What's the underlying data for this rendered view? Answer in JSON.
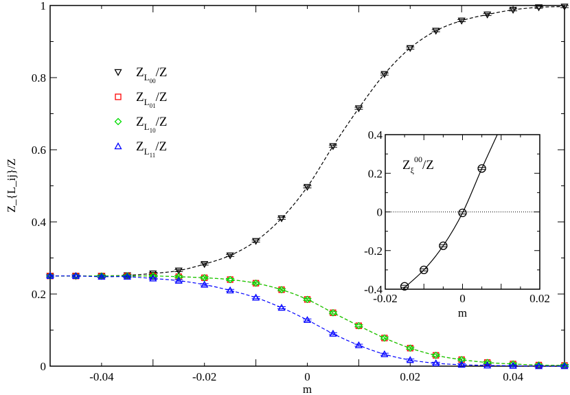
{
  "chart_data": [
    {
      "type": "line",
      "xlabel": "m",
      "ylabel": "Z_{L_ij}/Z",
      "xlim": [
        -0.05,
        0.05
      ],
      "ylim": [
        0,
        1
      ],
      "x_ticks": [
        "-0.04",
        "-0.02",
        "0",
        "0.02",
        "0.04"
      ],
      "y_ticks": [
        "0",
        "0.2",
        "0.4",
        "0.6",
        "0.8",
        "1"
      ],
      "grid": false,
      "legend_placement": "upper-left",
      "x": [
        -0.05,
        -0.045,
        -0.04,
        -0.035,
        -0.03,
        -0.025,
        -0.02,
        -0.015,
        -0.01,
        -0.005,
        0,
        0.005,
        0.01,
        0.015,
        0.02,
        0.025,
        0.03,
        0.035,
        0.04,
        0.045,
        0.05
      ],
      "series": [
        {
          "name": "Z_{L_00}/Z",
          "label_main": "Z",
          "label_sub": "L",
          "label_subsub": "00",
          "label_tail": "/Z",
          "marker": "triangle-down",
          "color": "#000000",
          "values": [
            0.25,
            0.25,
            0.25,
            0.252,
            0.257,
            0.265,
            0.283,
            0.307,
            0.347,
            0.41,
            0.497,
            0.61,
            0.715,
            0.81,
            0.882,
            0.93,
            0.958,
            0.975,
            0.988,
            0.995,
            0.997
          ]
        },
        {
          "name": "Z_{L_01}/Z",
          "label_main": "Z",
          "label_sub": "L",
          "label_subsub": "01",
          "label_tail": "/Z",
          "marker": "square",
          "color": "#ff0000",
          "values": [
            0.25,
            0.25,
            0.25,
            0.25,
            0.25,
            0.248,
            0.245,
            0.24,
            0.23,
            0.212,
            0.185,
            0.148,
            0.112,
            0.078,
            0.05,
            0.03,
            0.018,
            0.01,
            0.006,
            0.003,
            0.002
          ]
        },
        {
          "name": "Z_{L_10}/Z",
          "label_main": "Z",
          "label_sub": "L",
          "label_subsub": "10",
          "label_tail": "/Z",
          "marker": "diamond",
          "color": "#00dd00",
          "values": [
            0.25,
            0.25,
            0.25,
            0.25,
            0.25,
            0.248,
            0.245,
            0.24,
            0.23,
            0.212,
            0.185,
            0.148,
            0.112,
            0.078,
            0.05,
            0.03,
            0.018,
            0.01,
            0.006,
            0.003,
            0.002
          ]
        },
        {
          "name": "Z_{L_11}/Z",
          "label_main": "Z",
          "label_sub": "L",
          "label_subsub": "11",
          "label_tail": "/Z",
          "marker": "triangle-up",
          "color": "#0000ff",
          "values": [
            0.25,
            0.25,
            0.248,
            0.248,
            0.243,
            0.237,
            0.226,
            0.21,
            0.19,
            0.162,
            0.128,
            0.09,
            0.058,
            0.033,
            0.017,
            0.008,
            0.004,
            0.002,
            0.001,
            0.0,
            0.0
          ]
        }
      ]
    },
    {
      "type": "line",
      "xlabel": "m",
      "xlim": [
        -0.02,
        0.02
      ],
      "ylim": [
        -0.4,
        0.4
      ],
      "x_ticks": [
        "-0.02",
        "0",
        "0.02"
      ],
      "y_ticks": [
        "-0.4",
        "-0.2",
        "0",
        "0.2",
        "0.4"
      ],
      "annotation": {
        "main": "Z",
        "sub": "ξ",
        "sup": "00",
        "tail": "/Z"
      },
      "reference_line_y": 0,
      "series": [
        {
          "marker": "circle",
          "color": "#000000",
          "x": [
            -0.015,
            -0.01,
            -0.005,
            0,
            0.005
          ],
          "values": [
            -0.385,
            -0.3,
            -0.175,
            -0.005,
            0.225
          ],
          "curve_x": [
            -0.0155,
            -0.01,
            -0.005,
            0,
            0.005,
            0.009
          ],
          "curve_y": [
            -0.4,
            -0.3,
            -0.175,
            -0.005,
            0.225,
            0.4
          ]
        }
      ]
    }
  ]
}
